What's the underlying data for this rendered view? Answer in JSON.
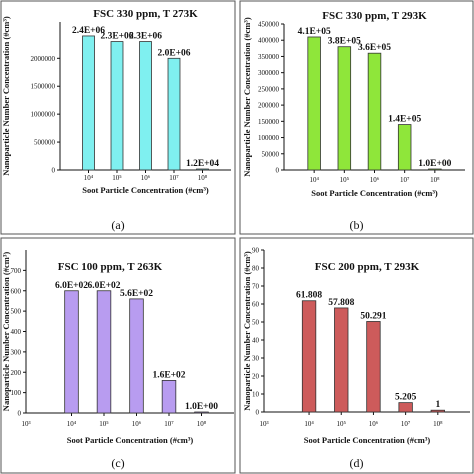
{
  "chart_data": [
    {
      "type": "bar",
      "panel_label": "(a)",
      "title": "FSC 330 ppm, T 273K",
      "categories": [
        "10⁴",
        "10⁵",
        "10⁶",
        "10⁷",
        "10⁸"
      ],
      "values": [
        2400000,
        2300000,
        2300000,
        2000000,
        12000
      ],
      "data_labels": [
        "2.4E+06",
        "2.3E+06",
        "2.3E+06",
        "2.0E+06",
        "1.2E+04"
      ],
      "xlabel": "Soot Particle Concentration (#cm³)",
      "ylabel": "Nanoparticle Number Concentration (#cm³)",
      "ylim": [
        0,
        2650000
      ],
      "yticks": [
        0,
        500000,
        1000000,
        1500000,
        2000000
      ],
      "ytick_labels": [
        "0",
        "500000",
        "1000000",
        "1500000",
        "2000000"
      ],
      "extra_xticks": [],
      "bar_color": "#7ff0f0"
    },
    {
      "type": "bar",
      "panel_label": "(b)",
      "title": "FSC 330 ppm, T 293K",
      "categories": [
        "10⁴",
        "10⁵",
        "10⁶",
        "10⁷",
        "10⁸"
      ],
      "values": [
        410000,
        380000,
        360000,
        140000,
        1
      ],
      "data_labels": [
        "4.1E+05",
        "3.8E+05",
        "3.6E+05",
        "1.4E+05",
        "1.0E+00"
      ],
      "xlabel": "Soot Particle Concentration (#cm³)",
      "ylabel": "Nanoparticle Number Concentration (#cm³)",
      "ylim": [
        0,
        450000
      ],
      "yticks": [
        0,
        50000,
        100000,
        150000,
        200000,
        250000,
        300000,
        350000,
        400000,
        450000
      ],
      "ytick_labels": [
        "0",
        "50000",
        "100000",
        "150000",
        "200000",
        "250000",
        "300000",
        "350000",
        "400000",
        "450000"
      ],
      "extra_xticks": [],
      "bar_color": "#8fe63a"
    },
    {
      "type": "bar",
      "panel_label": "(c)",
      "title": "FSC 100 ppm, T 263K",
      "categories": [
        "10⁴",
        "10⁵",
        "10⁶",
        "10⁷",
        "10⁸"
      ],
      "values": [
        600,
        600,
        560,
        160,
        1
      ],
      "data_labels": [
        "6.0E+02",
        "6.0E+02",
        "5.6E+02",
        "1.6E+02",
        "1.0E+00"
      ],
      "xlabel": "Soot Particle Concentration (#cm³)",
      "ylabel": "Nanoparticle Number Concentration (#cm³)",
      "ylim": [
        0,
        800
      ],
      "yticks": [
        0,
        100,
        200,
        300,
        400,
        500,
        600,
        700
      ],
      "ytick_labels": [
        "0",
        "100",
        "200",
        "300",
        "400",
        "500",
        "600",
        "700"
      ],
      "extra_xticks": [
        "10³"
      ],
      "bar_color": "#b89cf0"
    },
    {
      "type": "bar",
      "panel_label": "(d)",
      "title": "FSC 200 ppm, T 293K",
      "categories": [
        "10⁴",
        "10⁵",
        "10⁶",
        "10⁷",
        "10⁸"
      ],
      "values": [
        61.808,
        57.808,
        50.291,
        5.205,
        1
      ],
      "data_labels": [
        "61.808",
        "57.808",
        "50.291",
        "5.205",
        "1"
      ],
      "xlabel": "Soot Particle Concentration (#cm³)",
      "ylabel": "Nanoparticle Number Concentration (#cm³)",
      "ylim": [
        0,
        90
      ],
      "yticks": [
        0,
        10,
        20,
        30,
        40,
        50,
        60,
        70,
        80,
        90
      ],
      "ytick_labels": [
        "0",
        "10",
        "20",
        "30",
        "40",
        "50",
        "60",
        "70",
        "80",
        "90"
      ],
      "extra_xticks": [
        "10³"
      ],
      "bar_color": "#cd5b5b"
    }
  ]
}
